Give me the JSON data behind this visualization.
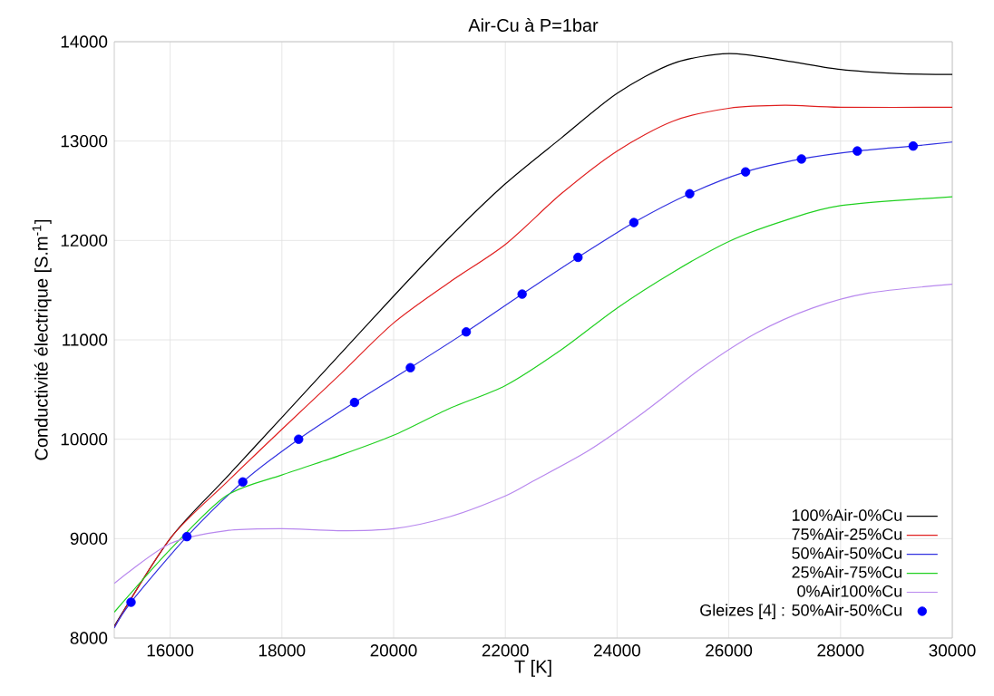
{
  "chart_data": {
    "type": "line",
    "title": "Air-Cu à P=1bar",
    "xlabel": "T [K]",
    "ylabel": "Conductivité électrique [S.m$^{-1}$]",
    "xlim": [
      15000,
      30000
    ],
    "ylim": [
      8000,
      14000
    ],
    "xticks": [
      16000,
      18000,
      20000,
      22000,
      24000,
      26000,
      28000,
      30000
    ],
    "yticks": [
      8000,
      9000,
      10000,
      11000,
      12000,
      13000,
      14000
    ],
    "grid": true,
    "legend": "bottom right",
    "line_style": "solid",
    "series": [
      {
        "name": "100%Air-0%Cu",
        "color": "#000000",
        "x": [
          15000,
          16000,
          17000,
          18000,
          19000,
          20000,
          21000,
          22000,
          23000,
          24000,
          25000,
          26000,
          27000,
          28000,
          29000,
          30000
        ],
        "values": [
          8120,
          9000,
          9610,
          10220,
          10830,
          11440,
          12030,
          12570,
          13030,
          13480,
          13780,
          13880,
          13810,
          13720,
          13680,
          13670
        ]
      },
      {
        "name": "75%Air-25%Cu",
        "color": "#e02020",
        "x": [
          15000,
          16000,
          17000,
          18000,
          19000,
          20000,
          21000,
          22000,
          23000,
          24000,
          25000,
          26000,
          27000,
          28000,
          30000
        ],
        "values": [
          8110,
          9000,
          9560,
          10100,
          10630,
          11170,
          11580,
          11960,
          12470,
          12900,
          13200,
          13330,
          13360,
          13340,
          13340
        ]
      },
      {
        "name": "50%Air-50%Cu",
        "color": "#3030e0",
        "x": [
          15000,
          15300,
          16300,
          17300,
          18300,
          19300,
          20300,
          21300,
          22300,
          23300,
          24300,
          25300,
          26300,
          27300,
          28300,
          29300,
          30000
        ],
        "values": [
          8100,
          8360,
          9020,
          9570,
          10000,
          10370,
          10720,
          11080,
          11460,
          11830,
          12180,
          12470,
          12690,
          12820,
          12900,
          12950,
          12990
        ]
      },
      {
        "name": "25%Air-75%Cu",
        "color": "#20d020",
        "x": [
          15000,
          16000,
          17000,
          18000,
          19000,
          20000,
          21000,
          22000,
          23000,
          24000,
          25000,
          26000,
          27000,
          28000,
          30000
        ],
        "values": [
          8260,
          8890,
          9430,
          9640,
          9830,
          10040,
          10310,
          10540,
          10900,
          11320,
          11680,
          11990,
          12200,
          12350,
          12440
        ]
      },
      {
        "name": "0%Air100%Cu",
        "color": "#b888ee",
        "x": [
          15000,
          16000,
          17000,
          18000,
          19000,
          20000,
          21000,
          22000,
          22500,
          23500,
          24500,
          25500,
          26500,
          27500,
          28500,
          30000
        ],
        "values": [
          8550,
          8950,
          9080,
          9100,
          9080,
          9100,
          9220,
          9430,
          9580,
          9890,
          10280,
          10710,
          11070,
          11320,
          11470,
          11560
        ]
      },
      {
        "name": "Gleizes [4] : 50%Air-50%Cu",
        "type": "scatter",
        "marker": "circle",
        "color": "#0000ff",
        "x": [
          15300,
          16300,
          17300,
          18300,
          19300,
          20300,
          21300,
          22300,
          23300,
          24300,
          25300,
          26300,
          27300,
          28300,
          29300
        ],
        "values": [
          8360,
          9020,
          9570,
          10000,
          10370,
          10720,
          11080,
          11460,
          11830,
          12180,
          12470,
          12690,
          12820,
          12900,
          12950
        ]
      }
    ]
  }
}
